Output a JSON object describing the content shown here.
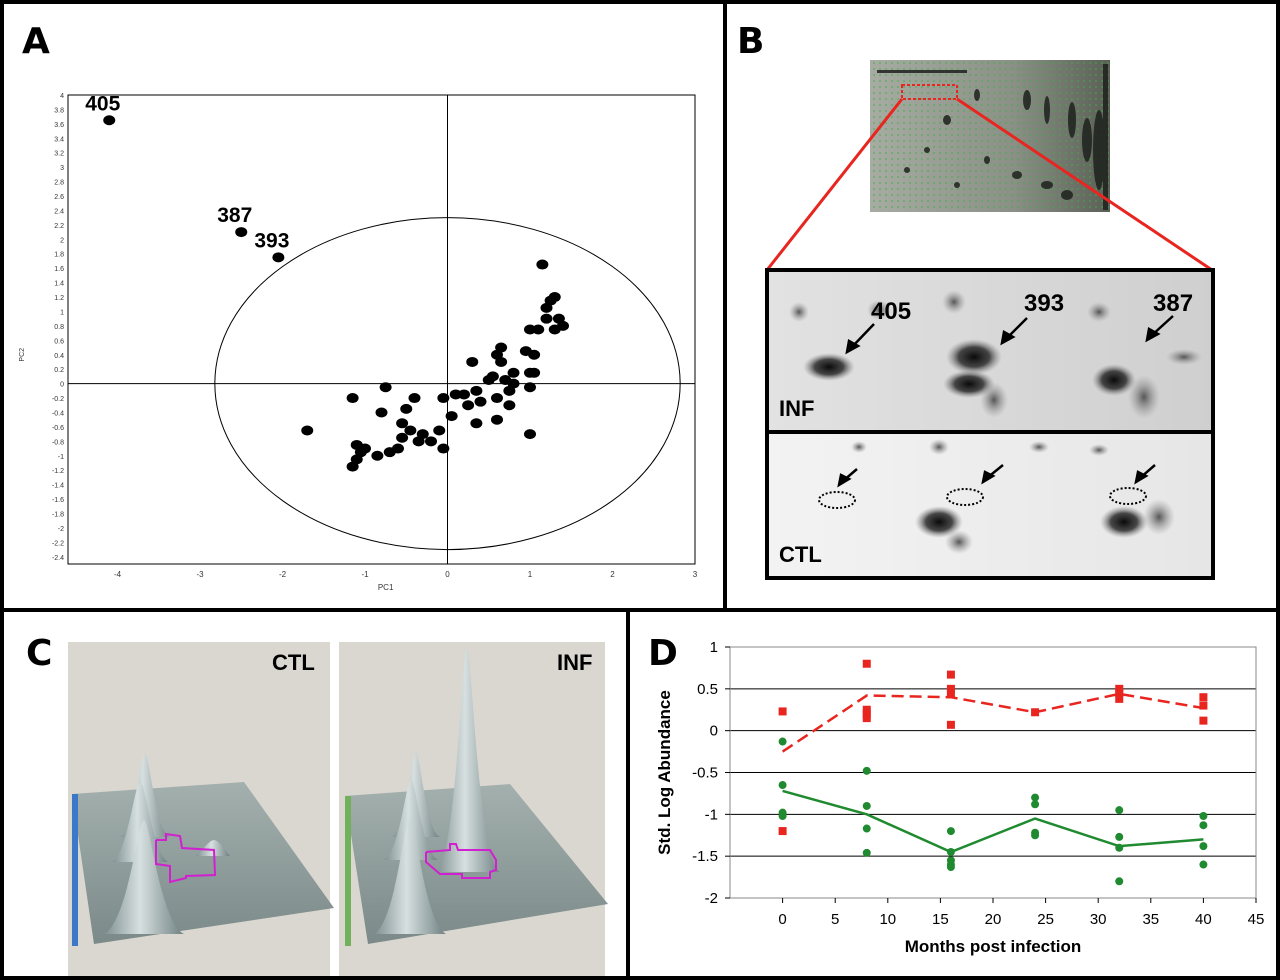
{
  "panels": {
    "a": {
      "letter": "A"
    },
    "b": {
      "letter": "B"
    },
    "c": {
      "letter": "C"
    },
    "d": {
      "letter": "D"
    }
  },
  "pca": {
    "xlabel": "PC1",
    "ylabel": "PC2",
    "labels": {
      "p405": "405",
      "p387": "387",
      "p393": "393"
    }
  },
  "gel": {
    "inf_label": "INF",
    "ctl_label": "CTL",
    "spots": {
      "s405": "405",
      "s393": "393",
      "s387": "387"
    }
  },
  "surface": {
    "ctl_label": "CTL",
    "inf_label": "INF"
  },
  "chart_data": [
    {
      "type": "scatter",
      "xlabel": "PC1",
      "ylabel": "PC2",
      "xlim": [
        -4.6,
        3.0
      ],
      "ylim": [
        -2.5,
        4.0
      ],
      "xticks": [
        -4,
        -3,
        -2,
        -1,
        0,
        1,
        2,
        3
      ],
      "yticks": [
        -2.4,
        -2.2,
        -2,
        -1.8,
        -1.6,
        -1.4,
        -1.2,
        -1,
        -0.8,
        -0.6,
        -0.4,
        -0.2,
        0,
        0.2,
        0.4,
        0.6,
        0.8,
        1,
        1.2,
        1.4,
        1.6,
        1.8,
        2,
        2.2,
        2.4,
        2.6,
        2.8,
        3,
        3.2,
        3.4,
        3.6,
        3.8,
        4
      ],
      "grid": false,
      "ellipse": {
        "cx": 0,
        "cy": 0,
        "rx": 2.82,
        "ry": 2.3
      },
      "labeled_points": [
        {
          "label": "405",
          "x": -4.1,
          "y": 3.65
        },
        {
          "label": "387",
          "x": -2.5,
          "y": 2.1
        },
        {
          "label": "393",
          "x": -2.05,
          "y": 1.75
        }
      ],
      "points": [
        [
          -1.7,
          -0.65
        ],
        [
          -1.15,
          -0.2
        ],
        [
          -1.15,
          -1.15
        ],
        [
          -1.1,
          -0.85
        ],
        [
          -1.1,
          -1.05
        ],
        [
          -1.05,
          -0.95
        ],
        [
          -1.0,
          -0.9
        ],
        [
          -0.85,
          -1.0
        ],
        [
          -0.8,
          -0.4
        ],
        [
          -0.75,
          -0.05
        ],
        [
          -0.7,
          -0.95
        ],
        [
          -0.6,
          -0.9
        ],
        [
          -0.55,
          -0.75
        ],
        [
          -0.55,
          -0.55
        ],
        [
          -0.5,
          -0.35
        ],
        [
          -0.45,
          -0.65
        ],
        [
          -0.4,
          -0.2
        ],
        [
          -0.35,
          -0.8
        ],
        [
          -0.3,
          -0.7
        ],
        [
          -0.2,
          -0.8
        ],
        [
          -0.1,
          -0.65
        ],
        [
          -0.05,
          -0.9
        ],
        [
          -0.05,
          -0.2
        ],
        [
          0.05,
          -0.45
        ],
        [
          0.1,
          -0.15
        ],
        [
          0.2,
          -0.15
        ],
        [
          0.25,
          -0.3
        ],
        [
          0.3,
          0.3
        ],
        [
          0.35,
          -0.55
        ],
        [
          0.35,
          -0.1
        ],
        [
          0.4,
          -0.25
        ],
        [
          0.5,
          0.05
        ],
        [
          0.55,
          0.1
        ],
        [
          0.6,
          -0.2
        ],
        [
          0.6,
          -0.5
        ],
        [
          0.6,
          0.4
        ],
        [
          0.65,
          0.5
        ],
        [
          0.65,
          0.3
        ],
        [
          0.7,
          0.05
        ],
        [
          0.75,
          -0.1
        ],
        [
          0.75,
          -0.3
        ],
        [
          0.8,
          0.15
        ],
        [
          0.8,
          0.0
        ],
        [
          0.95,
          0.45
        ],
        [
          1.0,
          -0.05
        ],
        [
          1.0,
          0.15
        ],
        [
          1.0,
          0.75
        ],
        [
          1.0,
          -0.7
        ],
        [
          1.05,
          0.4
        ],
        [
          1.05,
          0.15
        ],
        [
          1.1,
          0.75
        ],
        [
          1.15,
          1.65
        ],
        [
          1.2,
          0.9
        ],
        [
          1.2,
          1.05
        ],
        [
          1.25,
          1.15
        ],
        [
          1.3,
          1.2
        ],
        [
          1.3,
          0.75
        ],
        [
          1.35,
          0.9
        ],
        [
          1.4,
          0.8
        ]
      ]
    },
    {
      "type": "line",
      "xlabel": "Months post infection",
      "ylabel": "Std. Log Abundance",
      "xlim": [
        -5,
        45
      ],
      "ylim": [
        -2,
        1
      ],
      "xticks": [
        0,
        5,
        10,
        15,
        20,
        25,
        30,
        35,
        40,
        45
      ],
      "yticks": [
        -2,
        -1.5,
        -1,
        -0.5,
        0,
        0.5,
        1
      ],
      "ytick_labels": [
        "-2",
        "-1.5",
        "-1",
        "-0.5",
        "0",
        "0.5",
        "1"
      ],
      "grid": "horizontal",
      "series": [
        {
          "color": "#e8251f",
          "marker": "square",
          "line_style": "dashed",
          "mean_x": [
            0,
            8,
            16,
            24,
            32,
            40
          ],
          "mean_y": [
            -0.25,
            0.42,
            0.4,
            0.22,
            0.44,
            0.27
          ],
          "points": [
            [
              0,
              0.23
            ],
            [
              0,
              -1.2
            ],
            [
              8,
              0.8
            ],
            [
              8,
              0.25
            ],
            [
              8,
              0.2
            ],
            [
              8,
              0.15
            ],
            [
              16,
              0.67
            ],
            [
              16,
              0.5
            ],
            [
              16,
              0.45
            ],
            [
              16,
              0.07
            ],
            [
              24,
              0.22
            ],
            [
              32,
              0.5
            ],
            [
              32,
              0.45
            ],
            [
              32,
              0.38
            ],
            [
              40,
              0.4
            ],
            [
              40,
              0.3
            ],
            [
              40,
              0.12
            ]
          ]
        },
        {
          "color": "#1f8a2f",
          "marker": "circle",
          "line_style": "solid",
          "mean_x": [
            0,
            8,
            16,
            24,
            32,
            40
          ],
          "mean_y": [
            -0.72,
            -1.0,
            -1.45,
            -1.05,
            -1.38,
            -1.3
          ],
          "points": [
            [
              0,
              -0.13
            ],
            [
              0,
              -0.65
            ],
            [
              0,
              -0.98
            ],
            [
              0,
              -1.02
            ],
            [
              8,
              -0.48
            ],
            [
              8,
              -0.9
            ],
            [
              8,
              -1.17
            ],
            [
              8,
              -1.46
            ],
            [
              16,
              -1.2
            ],
            [
              16,
              -1.45
            ],
            [
              16,
              -1.55
            ],
            [
              16,
              -1.6
            ],
            [
              16,
              -1.63
            ],
            [
              24,
              -0.8
            ],
            [
              24,
              -0.88
            ],
            [
              24,
              -1.22
            ],
            [
              24,
              -1.25
            ],
            [
              32,
              -0.95
            ],
            [
              32,
              -1.27
            ],
            [
              32,
              -1.4
            ],
            [
              32,
              -1.8
            ],
            [
              40,
              -1.02
            ],
            [
              40,
              -1.13
            ],
            [
              40,
              -1.38
            ],
            [
              40,
              -1.6
            ]
          ]
        }
      ]
    }
  ]
}
